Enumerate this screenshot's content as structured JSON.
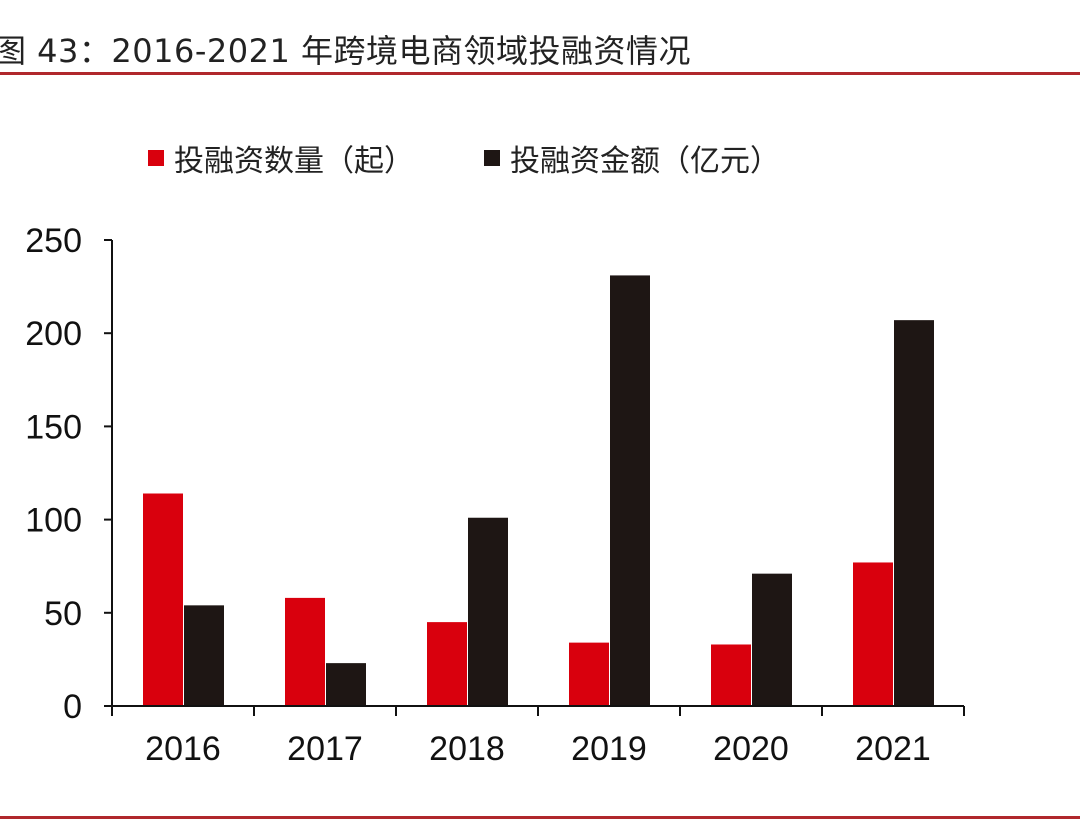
{
  "title": "图 43：2016-2021 年跨境电商领域投融资情况",
  "chart_data": {
    "type": "bar",
    "title": "图 43：2016-2021 年跨境电商领域投融资情况",
    "categories": [
      "2016",
      "2017",
      "2018",
      "2019",
      "2020",
      "2021"
    ],
    "series": [
      {
        "name": "投融资数量（起）",
        "color": "#d9000d",
        "values": [
          114,
          58,
          45,
          34,
          33,
          77
        ]
      },
      {
        "name": "投融资金额（亿元）",
        "color": "#1e1614",
        "values": [
          54,
          23,
          101,
          231,
          71,
          207
        ]
      }
    ],
    "ylim": [
      0,
      250
    ],
    "yticks": [
      0,
      50,
      100,
      150,
      200,
      250
    ],
    "grid": false,
    "legend": "top",
    "xlabel": "",
    "ylabel": ""
  }
}
